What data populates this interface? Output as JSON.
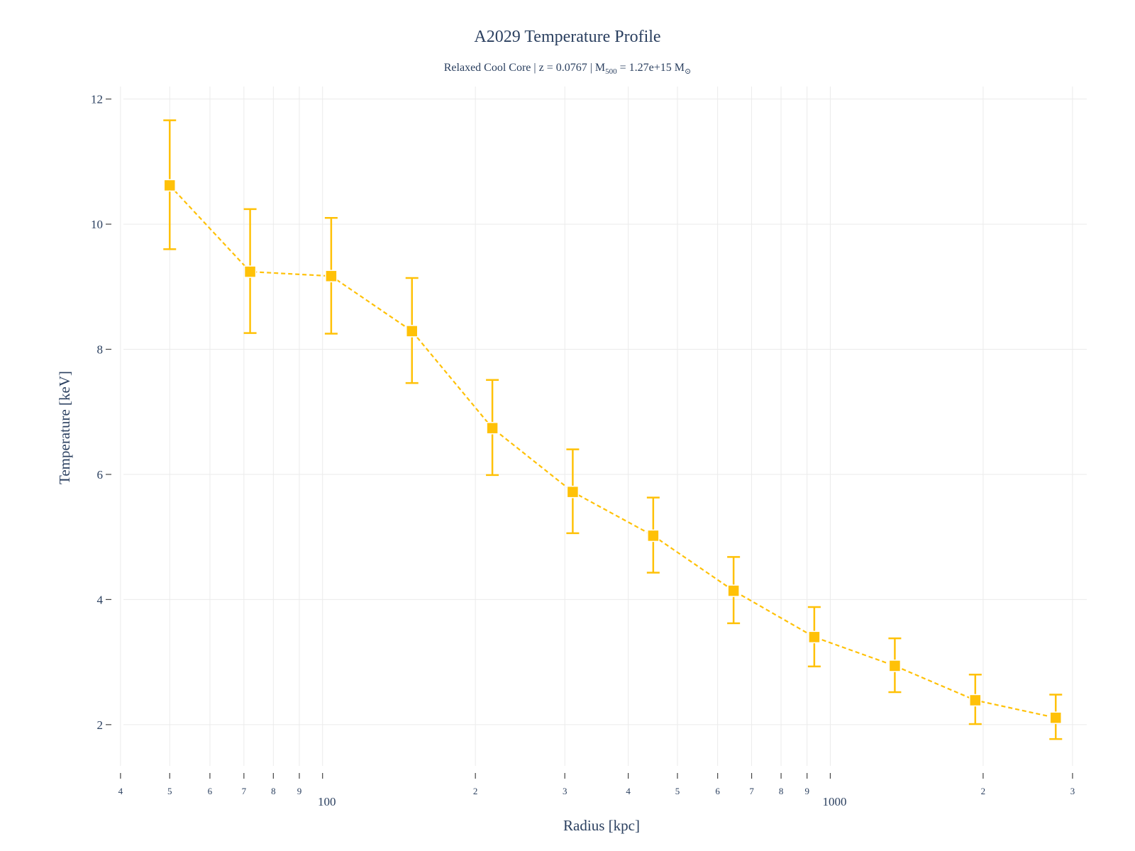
{
  "chart_data": {
    "type": "scatter",
    "title": "A2029 Temperature Profile",
    "subtitle": {
      "text_before": "Relaxed Cool Core | z = 0.0767 | M",
      "sub": "500",
      "text_mid": " = 1.27e+15 M",
      "sun_sub": "⊙"
    },
    "xlabel": "Radius [kpc]",
    "ylabel": "Temperature [keV]",
    "x_scale": "log",
    "xlim": [
      38.5,
      3200
    ],
    "ylim": [
      1.25,
      12.2
    ],
    "y_ticks": [
      2,
      4,
      6,
      8,
      10,
      12
    ],
    "x_major_ticks": [
      {
        "value": 100,
        "label": "100"
      },
      {
        "value": 1000,
        "label": "1000"
      }
    ],
    "x_minor_ticks": [
      {
        "value": 40,
        "label": "4"
      },
      {
        "value": 50,
        "label": "5"
      },
      {
        "value": 60,
        "label": "6"
      },
      {
        "value": 70,
        "label": "7"
      },
      {
        "value": 80,
        "label": "8"
      },
      {
        "value": 90,
        "label": "9"
      },
      {
        "value": 200,
        "label": "2"
      },
      {
        "value": 300,
        "label": "3"
      },
      {
        "value": 400,
        "label": "4"
      },
      {
        "value": 500,
        "label": "5"
      },
      {
        "value": 600,
        "label": "6"
      },
      {
        "value": 700,
        "label": "7"
      },
      {
        "value": 800,
        "label": "8"
      },
      {
        "value": 900,
        "label": "9"
      },
      {
        "value": 2000,
        "label": "2"
      },
      {
        "value": 3000,
        "label": "3"
      }
    ],
    "grid": true,
    "legend": "none",
    "marker": "square",
    "line_style": "dashed",
    "color": "#FFC107",
    "series": [
      {
        "x": [
          50,
          72,
          104,
          150,
          216,
          311,
          448,
          645,
          930,
          1340,
          1930,
          2780
        ],
        "y": [
          10.62,
          9.24,
          9.17,
          8.29,
          6.74,
          5.72,
          5.02,
          4.14,
          3.4,
          2.94,
          2.39,
          2.11
        ],
        "error_plus": [
          1.04,
          1.0,
          0.93,
          0.85,
          0.77,
          0.68,
          0.61,
          0.54,
          0.48,
          0.44,
          0.41,
          0.37
        ],
        "error_minus": [
          1.02,
          0.98,
          0.92,
          0.83,
          0.75,
          0.66,
          0.59,
          0.52,
          0.47,
          0.42,
          0.38,
          0.34
        ]
      }
    ]
  }
}
